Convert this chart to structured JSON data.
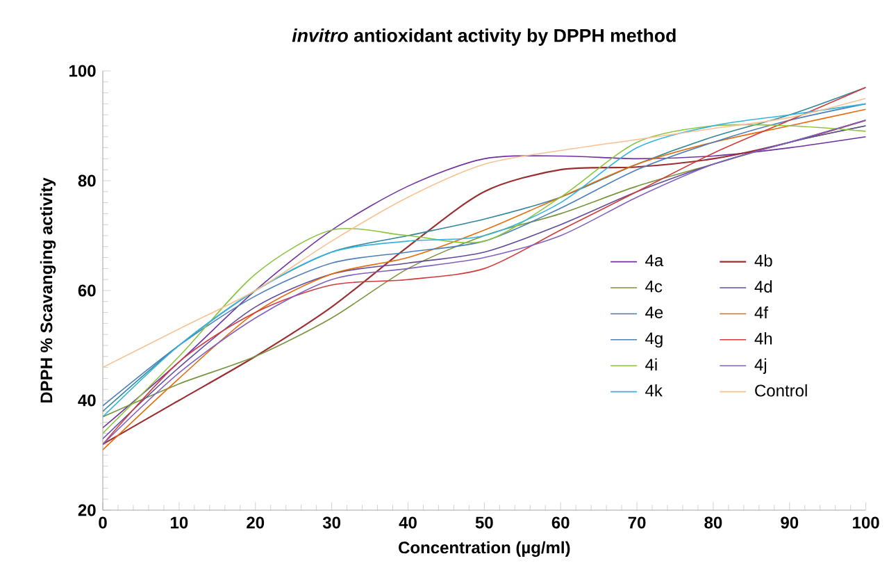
{
  "chart_data": {
    "type": "line",
    "title": "*invitro* antioxidant activity by DPPH method",
    "xlabel": "Concentration (µg/ml)",
    "ylabel": "DPPH % Scavanging activity",
    "x": [
      0,
      10,
      20,
      30,
      40,
      50,
      60,
      70,
      80,
      90,
      100
    ],
    "xlim": [
      0,
      100
    ],
    "ylim": [
      20,
      100
    ],
    "xticks": [
      0,
      10,
      20,
      30,
      40,
      50,
      60,
      70,
      80,
      90,
      100
    ],
    "yticks": [
      20,
      40,
      60,
      80,
      100
    ],
    "legend": "right",
    "series": [
      {
        "name": "4a",
        "color": "#7030a0",
        "values": [
          35,
          47,
          60,
          71,
          79,
          84,
          84.5,
          84,
          84.5,
          86,
          88
        ]
      },
      {
        "name": "4b",
        "color": "#9b2d30",
        "values": [
          32,
          40,
          48,
          57,
          68,
          78,
          82,
          82.5,
          84,
          87,
          91
        ]
      },
      {
        "name": "4c",
        "color": "#77933c",
        "values": [
          37,
          43,
          48,
          55,
          64,
          70,
          74,
          79,
          83,
          87,
          90
        ]
      },
      {
        "name": "4d",
        "color": "#604a9b",
        "values": [
          33,
          46,
          57,
          63,
          65,
          67,
          72,
          78,
          83,
          87,
          90
        ]
      },
      {
        "name": "4e",
        "color": "#31859c",
        "values": [
          38,
          50,
          60,
          67,
          70,
          73,
          77,
          83,
          88,
          92,
          97
        ]
      },
      {
        "name": "4f",
        "color": "#e46c0a",
        "values": [
          31,
          44,
          56,
          63,
          66,
          71,
          77,
          83,
          87,
          90,
          93
        ]
      },
      {
        "name": "4g",
        "color": "#4a7ebb",
        "values": [
          39,
          50,
          59,
          65,
          67,
          69,
          75,
          82,
          87,
          91,
          94
        ]
      },
      {
        "name": "4h",
        "color": "#d03a3a",
        "values": [
          32,
          47,
          56,
          61,
          62,
          64,
          71,
          78,
          85,
          91,
          97
        ]
      },
      {
        "name": "4i",
        "color": "#8cc43f",
        "values": [
          34,
          48,
          63,
          71,
          70,
          69,
          77,
          87,
          90,
          90,
          89
        ]
      },
      {
        "name": "4j",
        "color": "#8060c0",
        "values": [
          32,
          45,
          55,
          62,
          64,
          66,
          70,
          77,
          83,
          87,
          91
        ]
      },
      {
        "name": "4k",
        "color": "#32b4dc",
        "values": [
          37,
          50,
          60,
          67,
          69,
          70,
          76,
          86,
          90,
          92,
          94
        ]
      },
      {
        "name": "Control",
        "color": "#fac090",
        "values": [
          46,
          53,
          60,
          69,
          77,
          83,
          85.5,
          87.5,
          89.5,
          91.5,
          95
        ]
      }
    ]
  }
}
